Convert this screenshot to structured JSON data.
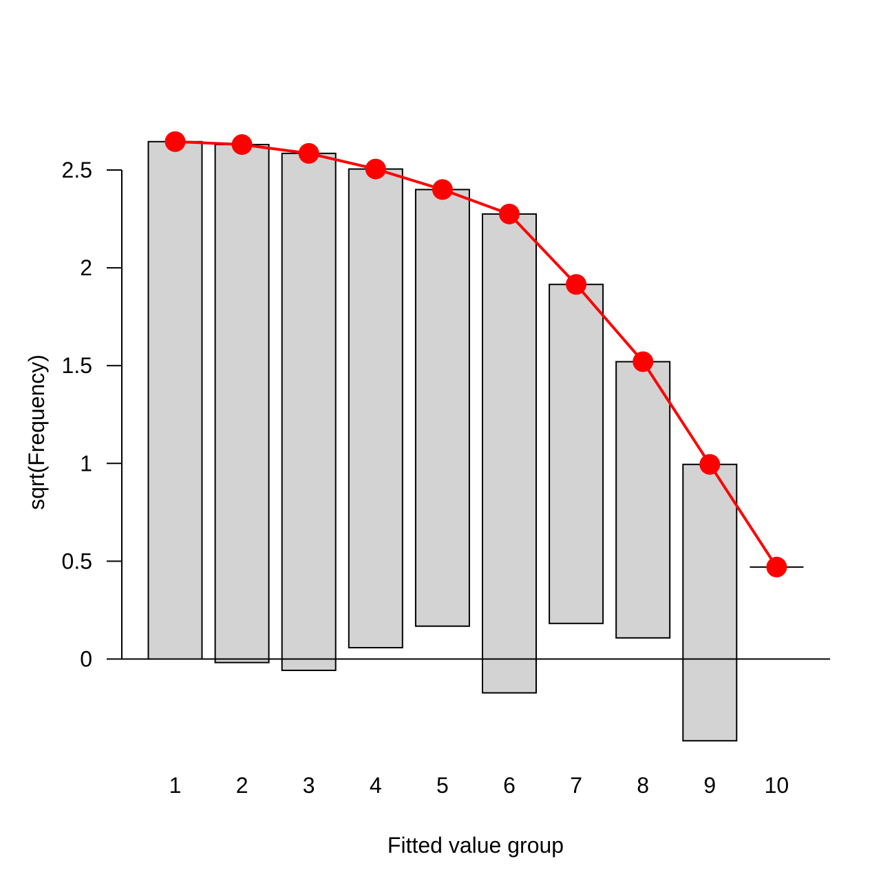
{
  "chart_data": {
    "type": "bar",
    "subtype": "hanging rootogram",
    "title": "",
    "xlabel": "Fitted value group",
    "ylabel": "sqrt(Frequency)",
    "categories": [
      "1",
      "2",
      "3",
      "4",
      "5",
      "6",
      "7",
      "8",
      "9",
      "10"
    ],
    "y_ticks": [
      "0",
      "0.5",
      "1",
      "1.5",
      "2",
      "2.5"
    ],
    "y_tick_values": [
      0,
      0.5,
      1,
      1.5,
      2,
      2.5
    ],
    "ylim": [
      -0.42,
      2.65
    ],
    "grid": false,
    "legend": "none",
    "series": [
      {
        "kind": "hanging-bars",
        "tops": [
          2.645,
          2.63,
          2.585,
          2.505,
          2.4,
          2.275,
          1.915,
          1.52,
          0.995,
          0.47
        ],
        "bottoms": [
          0.0,
          -0.018,
          -0.058,
          0.058,
          0.168,
          -0.173,
          0.182,
          0.108,
          -0.418,
          0.47
        ]
      },
      {
        "kind": "expected-line-with-points",
        "values": [
          2.645,
          2.63,
          2.585,
          2.505,
          2.4,
          2.275,
          1.915,
          1.52,
          0.995,
          0.47
        ]
      }
    ],
    "colors": {
      "bar_fill": "#d3d3d3",
      "bar_stroke": "#000000",
      "line": "#ff0000",
      "points": "#ff0000"
    }
  }
}
